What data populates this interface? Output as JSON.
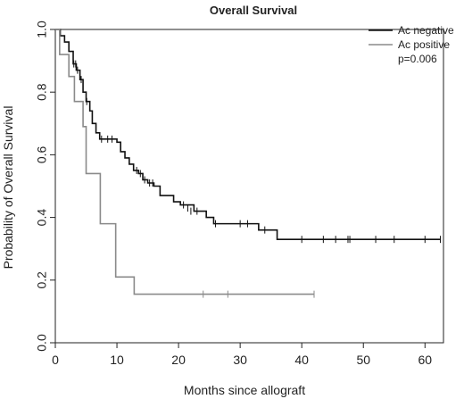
{
  "chart_data": {
    "type": "line",
    "title": "Overall Survival",
    "xlabel": "Months since allograft",
    "ylabel": "Probability of Overall Survival",
    "xlim": [
      0,
      63
    ],
    "ylim": [
      0,
      1
    ],
    "x_ticks": [
      0,
      10,
      20,
      30,
      40,
      50,
      60
    ],
    "y_ticks": [
      0.0,
      0.2,
      0.4,
      0.6,
      0.8,
      1.0
    ],
    "x_tick_labels": [
      "0",
      "10",
      "20",
      "30",
      "40",
      "50",
      "60"
    ],
    "y_tick_labels": [
      "0.0",
      "0.2",
      "0.4",
      "0.6",
      "0.8",
      "1.0"
    ],
    "legend_position": "top-right",
    "annotation": "p=0.006",
    "grid": false,
    "series": [
      {
        "name": "Ac negative",
        "color": "#111111",
        "steps": [
          [
            0,
            1.0
          ],
          [
            0.8,
            0.98
          ],
          [
            1.5,
            0.96
          ],
          [
            2.2,
            0.93
          ],
          [
            2.9,
            0.89
          ],
          [
            3.4,
            0.87
          ],
          [
            4.0,
            0.84
          ],
          [
            4.5,
            0.8
          ],
          [
            5.0,
            0.77
          ],
          [
            5.6,
            0.74
          ],
          [
            6.0,
            0.7
          ],
          [
            6.6,
            0.67
          ],
          [
            7.2,
            0.65
          ],
          [
            10.0,
            0.64
          ],
          [
            10.6,
            0.61
          ],
          [
            11.3,
            0.59
          ],
          [
            12.0,
            0.57
          ],
          [
            12.7,
            0.55
          ],
          [
            13.5,
            0.54
          ],
          [
            14.2,
            0.52
          ],
          [
            15.0,
            0.51
          ],
          [
            16.0,
            0.5
          ],
          [
            17.0,
            0.47
          ],
          [
            19.2,
            0.45
          ],
          [
            20.3,
            0.44
          ],
          [
            22.5,
            0.42
          ],
          [
            24.5,
            0.4
          ],
          [
            25.7,
            0.38
          ],
          [
            33.0,
            0.36
          ],
          [
            36.0,
            0.33
          ],
          [
            62.5,
            0.33
          ]
        ],
        "censored": [
          [
            3.0,
            0.89
          ],
          [
            3.3,
            0.89
          ],
          [
            3.6,
            0.87
          ],
          [
            4.2,
            0.84
          ],
          [
            5.1,
            0.77
          ],
          [
            7.5,
            0.65
          ],
          [
            8.5,
            0.65
          ],
          [
            9.2,
            0.65
          ],
          [
            13.2,
            0.55
          ],
          [
            13.8,
            0.54
          ],
          [
            14.5,
            0.52
          ],
          [
            15.3,
            0.51
          ],
          [
            15.8,
            0.51
          ],
          [
            20.8,
            0.44
          ],
          [
            21.5,
            0.43
          ],
          [
            22.0,
            0.42
          ],
          [
            23.0,
            0.42
          ],
          [
            26.0,
            0.38
          ],
          [
            30.0,
            0.38
          ],
          [
            31.2,
            0.38
          ],
          [
            34.0,
            0.36
          ],
          [
            40.0,
            0.33
          ],
          [
            43.5,
            0.33
          ],
          [
            45.5,
            0.33
          ],
          [
            47.5,
            0.33
          ],
          [
            47.8,
            0.33
          ],
          [
            52.0,
            0.33
          ],
          [
            55.0,
            0.33
          ],
          [
            60.0,
            0.33
          ],
          [
            62.5,
            0.33
          ]
        ]
      },
      {
        "name": "Ac positive",
        "color": "#8a8a8a",
        "steps": [
          [
            0,
            1.0
          ],
          [
            0.7,
            0.92
          ],
          [
            2.2,
            0.85
          ],
          [
            3.1,
            0.77
          ],
          [
            4.5,
            0.69
          ],
          [
            5.0,
            0.54
          ],
          [
            7.3,
            0.38
          ],
          [
            9.8,
            0.21
          ],
          [
            11.2,
            0.21
          ],
          [
            12.8,
            0.155
          ],
          [
            42.0,
            0.155
          ]
        ],
        "censored": [
          [
            24.0,
            0.155
          ],
          [
            28.0,
            0.155
          ],
          [
            42.0,
            0.155
          ]
        ]
      }
    ]
  }
}
